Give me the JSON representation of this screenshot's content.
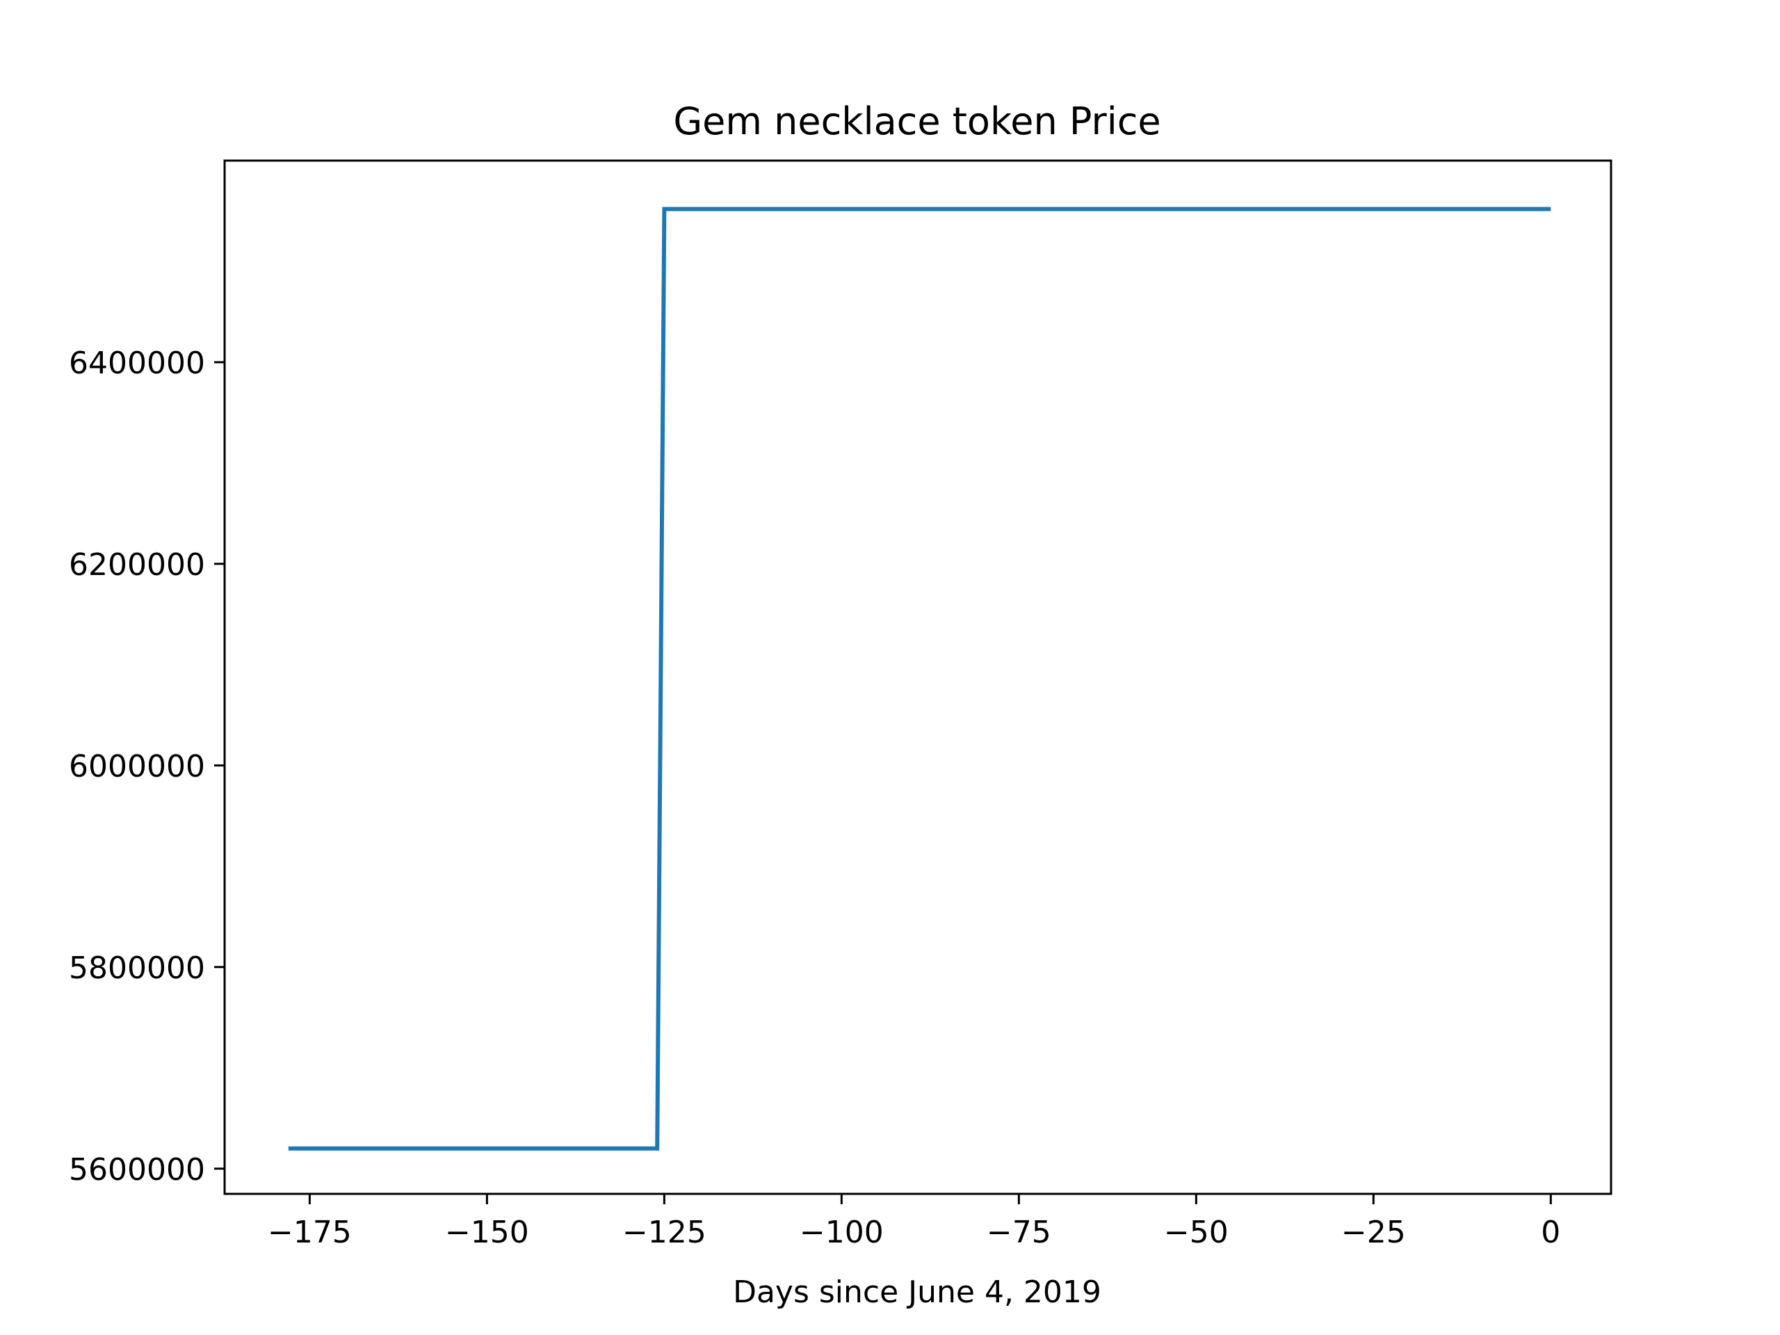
{
  "chart_data": {
    "type": "line",
    "title": "Gem necklace token Price",
    "xlabel": "Days since June 4, 2019",
    "ylabel": "",
    "line_color": "#1f77b4",
    "grid": false,
    "legend": "none",
    "xlim": [
      -187,
      8.5
    ],
    "ylim": [
      5575000,
      6600000
    ],
    "x_ticks": [
      -175,
      -150,
      -125,
      -100,
      -75,
      -50,
      -25,
      0
    ],
    "x_tick_labels": [
      "−175",
      "−150",
      "−125",
      "−100",
      "−75",
      "−50",
      "−25",
      "0"
    ],
    "y_ticks": [
      5600000,
      5800000,
      6000000,
      6200000,
      6400000
    ],
    "y_tick_labels": [
      "5600000",
      "5800000",
      "6000000",
      "6200000",
      "6400000"
    ],
    "series": [
      {
        "x": [
          -178,
          -126,
          -125,
          0
        ],
        "y": [
          5620000,
          5620000,
          6552000,
          6552000
        ]
      }
    ]
  }
}
